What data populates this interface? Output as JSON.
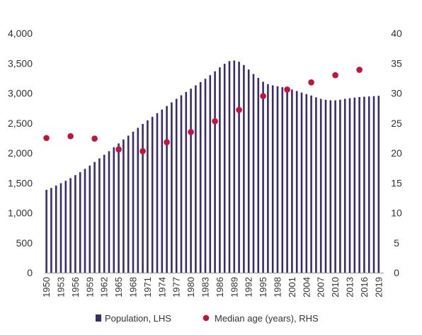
{
  "chart_data": {
    "type": "bar",
    "x": [
      1950,
      1951,
      1952,
      1953,
      1954,
      1955,
      1956,
      1957,
      1958,
      1959,
      1960,
      1961,
      1962,
      1963,
      1964,
      1965,
      1966,
      1967,
      1968,
      1969,
      1970,
      1971,
      1972,
      1973,
      1974,
      1975,
      1976,
      1977,
      1978,
      1979,
      1980,
      1981,
      1982,
      1983,
      1984,
      1985,
      1986,
      1987,
      1988,
      1989,
      1990,
      1991,
      1992,
      1993,
      1994,
      1995,
      1996,
      1997,
      1998,
      1999,
      2000,
      2001,
      2002,
      2003,
      2004,
      2005,
      2006,
      2007,
      2008,
      2009,
      2010,
      2011,
      2012,
      2013,
      2014,
      2015,
      2016,
      2017,
      2018,
      2019
    ],
    "x_tick_labels": [
      "1950",
      "1953",
      "1956",
      "1959",
      "1962",
      "1965",
      "1968",
      "1971",
      "1974",
      "1977",
      "1980",
      "1983",
      "1986",
      "1989",
      "1992",
      "1995",
      "1998",
      "2001",
      "2004",
      "2007",
      "2010",
      "2013",
      "2016",
      "2019"
    ],
    "series": [
      {
        "name": "Population, LHS",
        "axis": "left",
        "kind": "bar",
        "color": "#3b2d6b",
        "values": [
          1385,
          1415,
          1455,
          1495,
          1535,
          1580,
          1630,
          1680,
          1735,
          1790,
          1850,
          1910,
          1970,
          2030,
          2095,
          2160,
          2225,
          2290,
          2355,
          2420,
          2485,
          2545,
          2605,
          2665,
          2725,
          2785,
          2845,
          2905,
          2965,
          3020,
          3075,
          3130,
          3185,
          3240,
          3300,
          3365,
          3430,
          3490,
          3535,
          3545,
          3525,
          3470,
          3395,
          3320,
          3255,
          3190,
          3150,
          3130,
          3115,
          3100,
          3080,
          3060,
          3035,
          3010,
          2985,
          2960,
          2930,
          2905,
          2890,
          2880,
          2880,
          2890,
          2905,
          2915,
          2925,
          2935,
          2940,
          2945,
          2950,
          2955
        ]
      },
      {
        "name": "Median age (years), RHS",
        "axis": "right",
        "kind": "scatter",
        "color": "#c8103a",
        "x": [
          1950,
          1955,
          1960,
          1965,
          1970,
          1975,
          1980,
          1985,
          1990,
          1995,
          2000,
          2005,
          2010,
          2015
        ],
        "values": [
          22.5,
          22.8,
          22.4,
          20.6,
          20.3,
          21.8,
          23.5,
          25.3,
          27.2,
          29.5,
          30.6,
          31.8,
          33.0,
          33.9
        ]
      }
    ],
    "y_left": {
      "lim": [
        0,
        4000
      ],
      "ticks": [
        "0",
        "500",
        "1,000",
        "1,500",
        "2,000",
        "2,500",
        "3,000",
        "3,500",
        "4,000"
      ]
    },
    "y_right": {
      "lim": [
        0,
        40
      ],
      "ticks": [
        "0",
        "5",
        "10",
        "15",
        "20",
        "25",
        "30",
        "35",
        "40"
      ]
    },
    "grid": false,
    "legend": "bottom-center",
    "legend_entries": [
      "Population, LHS",
      "Median age (years), RHS"
    ]
  }
}
